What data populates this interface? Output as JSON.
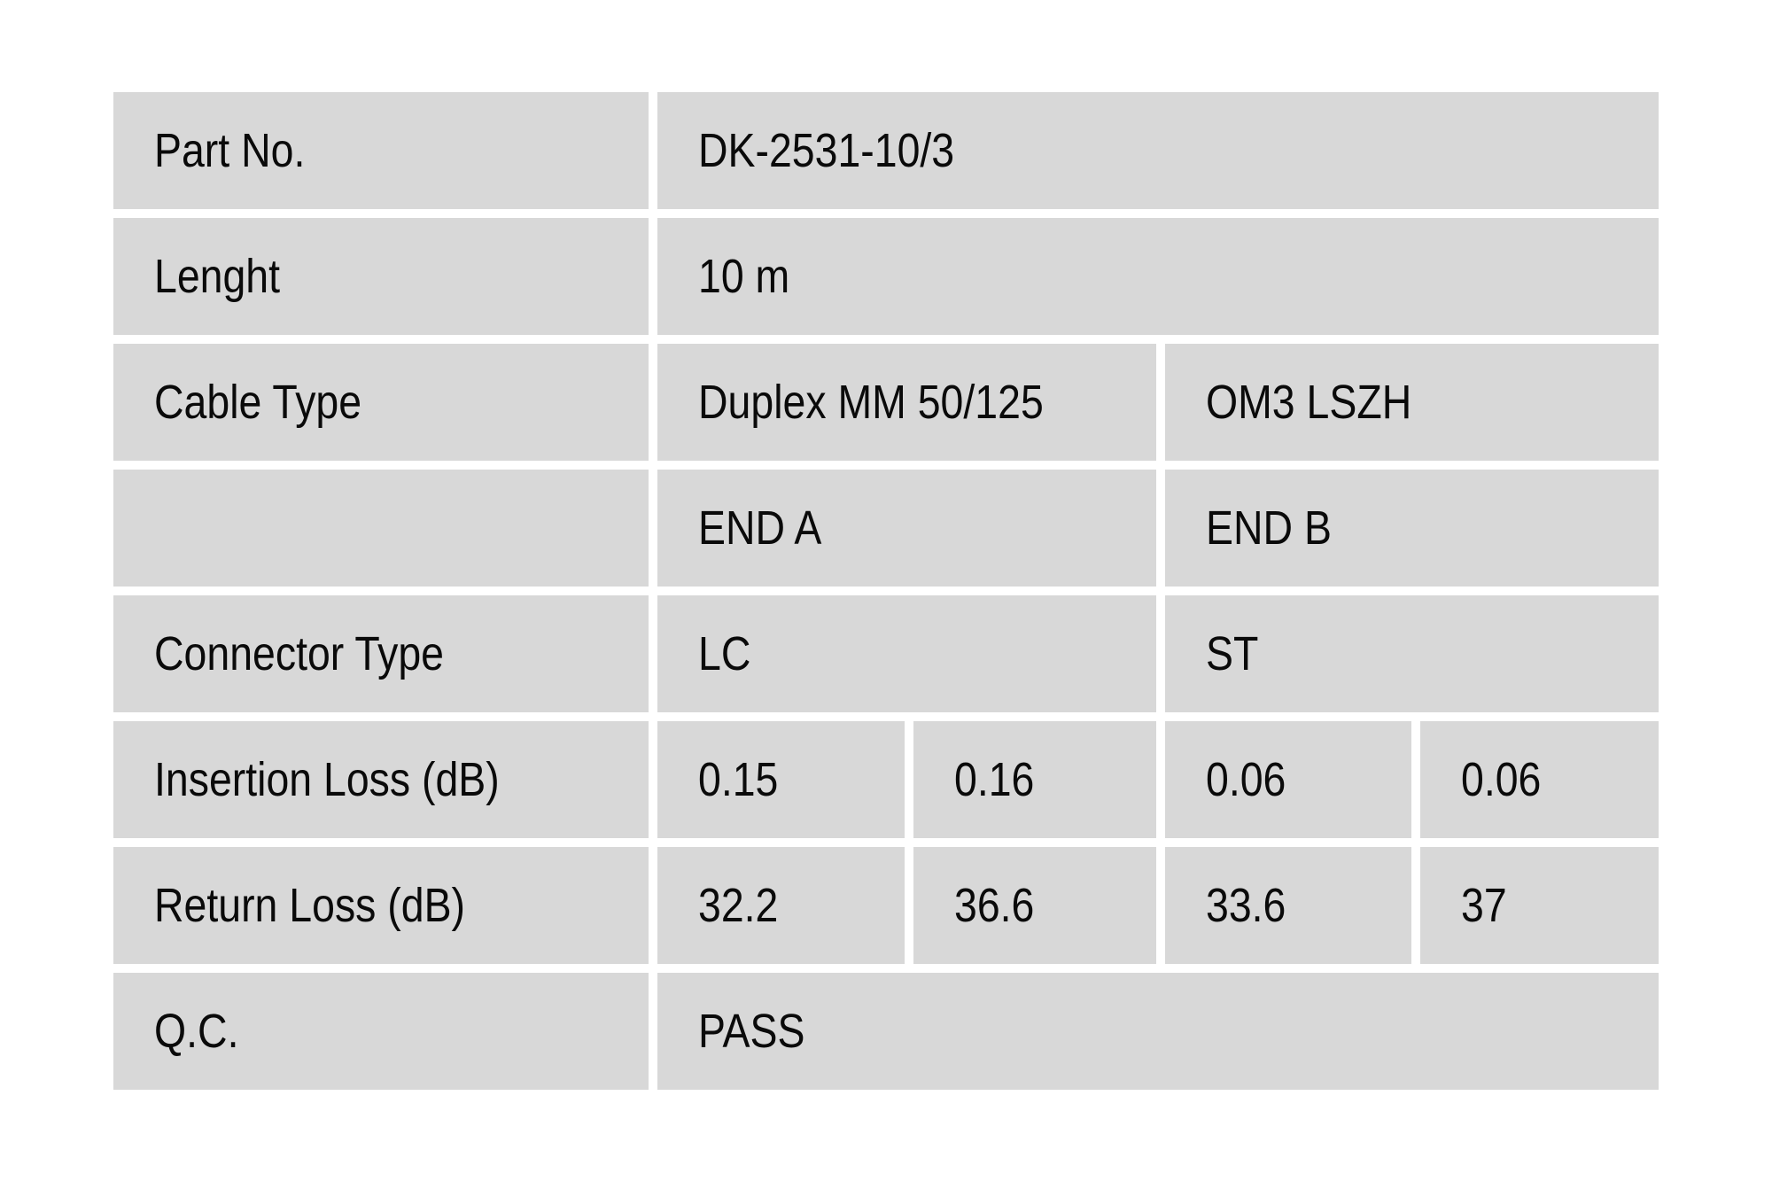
{
  "page": {
    "background_color": "#ffffff"
  },
  "table": {
    "cell_background_color": "#d8d8d8",
    "text_color": "#0a0a0a",
    "part_no": {
      "label": "Part No.",
      "value": "DK-2531-10/3"
    },
    "length": {
      "label": "Lenght",
      "value": "10 m"
    },
    "cable_type": {
      "label": "Cable Type",
      "end_a": "Duplex MM 50/125",
      "end_b": "OM3 LSZH"
    },
    "ends_header": {
      "label": "",
      "end_a": "END A",
      "end_b": "END B"
    },
    "connector_type": {
      "label": "Connector Type",
      "end_a": "LC",
      "end_b": "ST"
    },
    "insertion_loss": {
      "label": "Insertion Loss (dB)",
      "end_a_1": "0.15",
      "end_a_2": "0.16",
      "end_b_1": "0.06",
      "end_b_2": "0.06"
    },
    "return_loss": {
      "label": "Return Loss (dB)",
      "end_a_1": "32.2",
      "end_a_2": "36.6",
      "end_b_1": "33.6",
      "end_b_2": "37"
    },
    "qc": {
      "label": "Q.C.",
      "value": "PASS"
    }
  }
}
